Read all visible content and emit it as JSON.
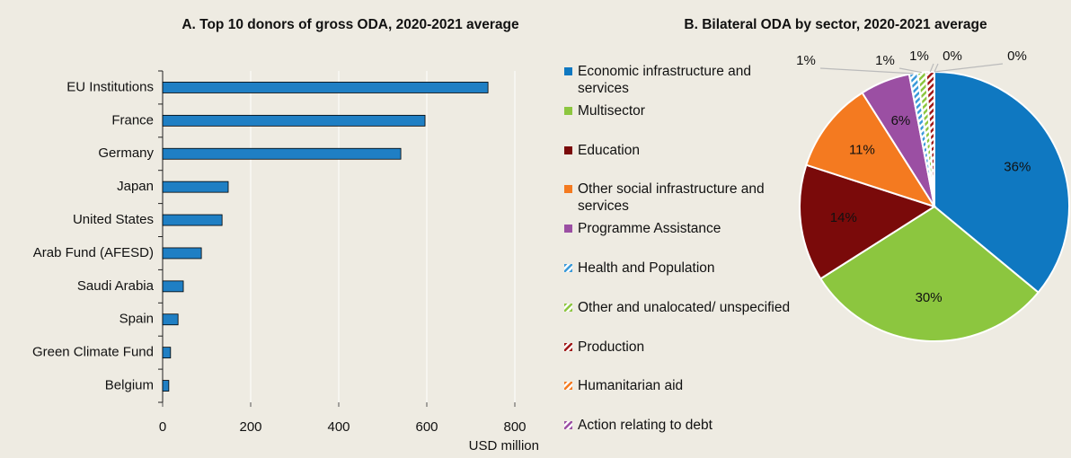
{
  "chart_data": [
    {
      "type": "hbar",
      "title": "A. Top 10  donors of gross ODA, 2020-2021 average",
      "categories": [
        "EU Institutions",
        "France",
        "Germany",
        "Japan",
        "United States",
        "Arab Fund (AFESD)",
        "Saudi Arabia",
        "Spain",
        "Green Climate Fund",
        "Belgium"
      ],
      "values": [
        739,
        596,
        541,
        149,
        135,
        88,
        47,
        35,
        18,
        14
      ],
      "color": "#1f7fc4",
      "x_label": "USD million",
      "xlim": [
        0,
        800
      ],
      "xticks": [
        0,
        200,
        400,
        600,
        800
      ],
      "grid": true
    },
    {
      "type": "pie",
      "title": "B. Bilateral ODA by sector, 2020-2021 average",
      "categories": [
        "Economic infrastructure and services",
        "Multisector",
        "Education",
        "Other social infrastructure and services",
        "Programme Assistance",
        "Health and Population",
        "Other and unalocated/ unspecified",
        "Production",
        "Humanitarian aid",
        "Action relating to debt"
      ],
      "values": [
        36,
        30,
        14,
        11,
        6,
        1,
        1,
        1,
        0,
        0
      ],
      "value_labels": [
        "36%",
        "30%",
        "14%",
        "11%",
        "6%",
        "1%",
        "1%",
        "1%",
        "0%",
        "0%"
      ],
      "colors": [
        "#0f78c1",
        "#8cc63f",
        "#7a0a0a",
        "#f47a20",
        "#9b4fa3",
        "#3a9ad9",
        "#8cc63f",
        "#a01818",
        "#f47a20",
        "#9b4fa3"
      ],
      "hatched": [
        false,
        false,
        false,
        false,
        false,
        true,
        true,
        true,
        true,
        true
      ]
    }
  ]
}
